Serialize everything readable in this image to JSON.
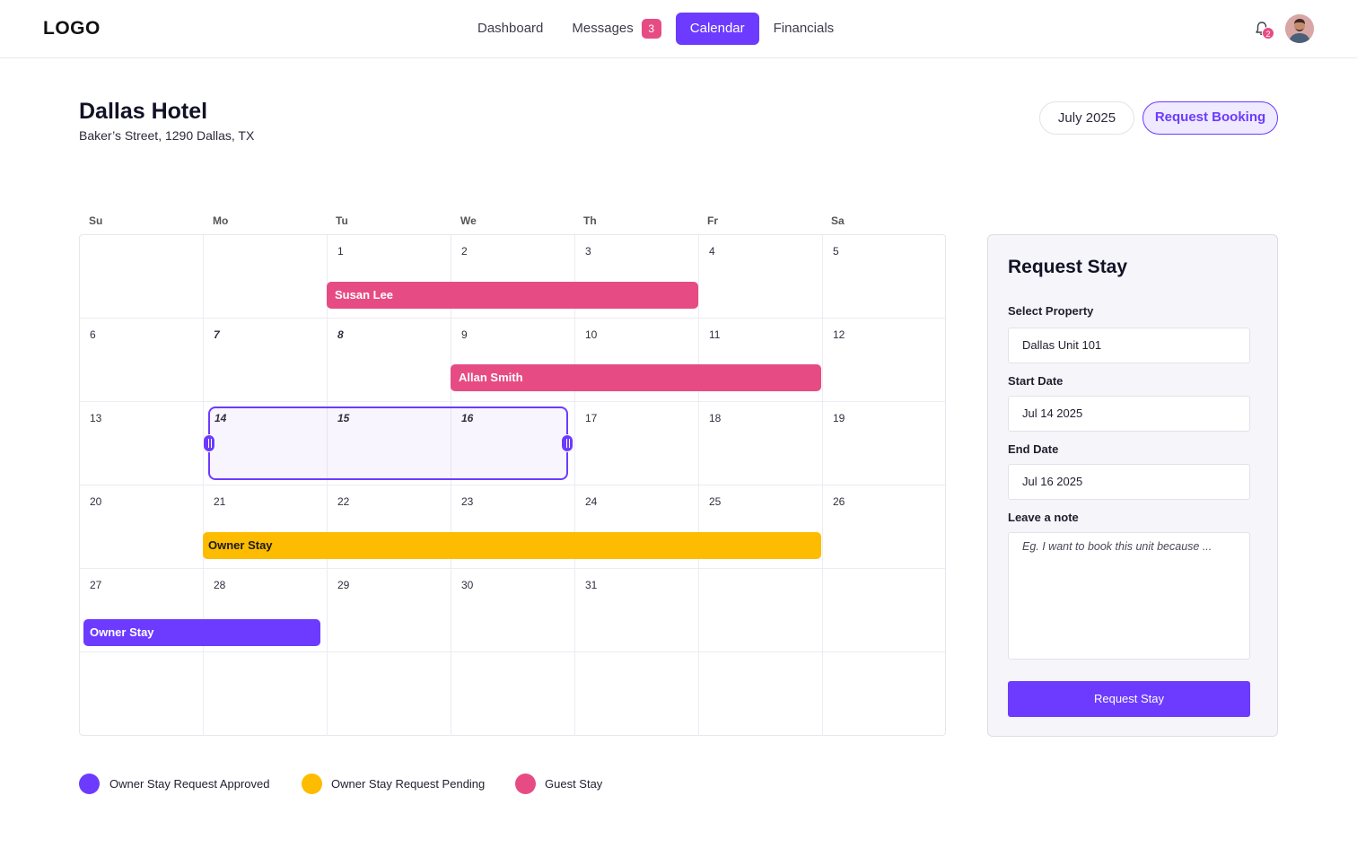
{
  "header": {
    "logo": "LOGO",
    "nav": [
      {
        "label": "Dashboard"
      },
      {
        "label": "Messages",
        "badge": "3"
      },
      {
        "label": "Calendar"
      },
      {
        "label": "Financials"
      }
    ],
    "notification_count": "2"
  },
  "property": {
    "title": "Dallas Hotel",
    "address": "Baker’s Street, 1290 Dallas, TX",
    "month": "July 2025",
    "request_booking_label": "Request Booking"
  },
  "calendar": {
    "weekdays": [
      "Su",
      "Mo",
      "Tu",
      "We",
      "Th",
      "Fr",
      "Sa"
    ],
    "days": [
      "",
      "",
      "1",
      "2",
      "3",
      "4",
      "5",
      "6",
      "7",
      "8",
      "9",
      "10",
      "11",
      "12",
      "13",
      "14",
      "15",
      "16",
      "17",
      "18",
      "19",
      "20",
      "21",
      "22",
      "23",
      "24",
      "25",
      "26",
      "27",
      "28",
      "29",
      "30",
      "31",
      "",
      "",
      "",
      "",
      "",
      "",
      "",
      "",
      ""
    ],
    "events": [
      {
        "name": "Susan Lee",
        "type": "guest"
      },
      {
        "name": "Allan Smith",
        "type": "guest"
      },
      {
        "name": "Owner Stay",
        "type": "pending"
      },
      {
        "name": "Owner Stay",
        "type": "approved"
      }
    ]
  },
  "legend": [
    {
      "label": "Owner Stay Request Approved",
      "color": "#6c3bff"
    },
    {
      "label": "Owner Stay Request Pending",
      "color": "#fdbc00"
    },
    {
      "label": "Guest Stay",
      "color": "#e64c83"
    }
  ],
  "request_panel": {
    "title": "Request Stay",
    "property_label": "Select Property",
    "property_value": "Dallas Unit 101",
    "start_label": "Start Date",
    "start_value": "Jul 14 2025",
    "end_label": "End Date",
    "end_value": "Jul 16 2025",
    "note_label": "Leave a note",
    "note_placeholder": "Eg. I want to book this unit because ...",
    "submit_label": "Request Stay"
  },
  "colors": {
    "accent": "#6c3bff",
    "guest": "#e64c83",
    "pending": "#fdbc00"
  }
}
